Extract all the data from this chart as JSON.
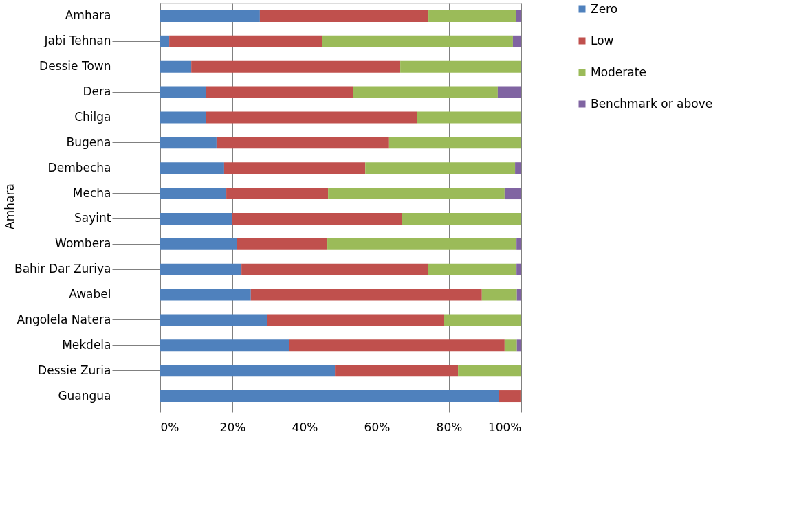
{
  "chart_data": {
    "type": "bar",
    "orientation": "horizontal",
    "stacked": true,
    "ylabel": "Amhara",
    "categories": [
      "Amhara",
      "Jabi Tehnan",
      "Dessie Town",
      "Dera",
      "Chilga",
      "Bugena",
      "Dembecha",
      "Mecha",
      "Sayint",
      "Wombera",
      "Bahir Dar Zuriya",
      "Awabel",
      "Angolela Natera",
      "Mekdela",
      "Dessie Zuria",
      "Guangua"
    ],
    "series": [
      {
        "name": "Zero",
        "color": "#4f81bd",
        "values": [
          27.6,
          2.5,
          8.6,
          12.6,
          12.6,
          15.6,
          17.7,
          18.3,
          20,
          21.3,
          22.5,
          25.1,
          29.7,
          35.8,
          48.4,
          93.9
        ]
      },
      {
        "name": "Low",
        "color": "#c0504d",
        "values": [
          46.7,
          42.3,
          57.9,
          40.9,
          58.6,
          47.8,
          39.1,
          28.2,
          46.9,
          25,
          51.6,
          64,
          48.8,
          59.6,
          34.1,
          5.9
        ]
      },
      {
        "name": "Moderate",
        "color": "#9bbb59",
        "values": [
          24.2,
          52.9,
          33.5,
          40,
          28.6,
          36.6,
          41.5,
          48.9,
          33.1,
          52.4,
          24.6,
          9.7,
          21.5,
          3.4,
          17.5,
          0.2
        ]
      },
      {
        "name": "Benchmark or above",
        "color": "#8064a2",
        "values": [
          1.5,
          2.3,
          0,
          6.5,
          0.2,
          0,
          1.7,
          4.6,
          0,
          1.3,
          1.3,
          1.2,
          0,
          1.2,
          0,
          0
        ]
      }
    ],
    "xlim": [
      0,
      100
    ],
    "xticks": [
      {
        "value": 0,
        "label": "0%"
      },
      {
        "value": 20,
        "label": "20%"
      },
      {
        "value": 40,
        "label": "40%"
      },
      {
        "value": 60,
        "label": "60%"
      },
      {
        "value": 80,
        "label": "80%"
      },
      {
        "value": 100,
        "label": "100%"
      }
    ],
    "grid": "x",
    "legend": "right"
  }
}
